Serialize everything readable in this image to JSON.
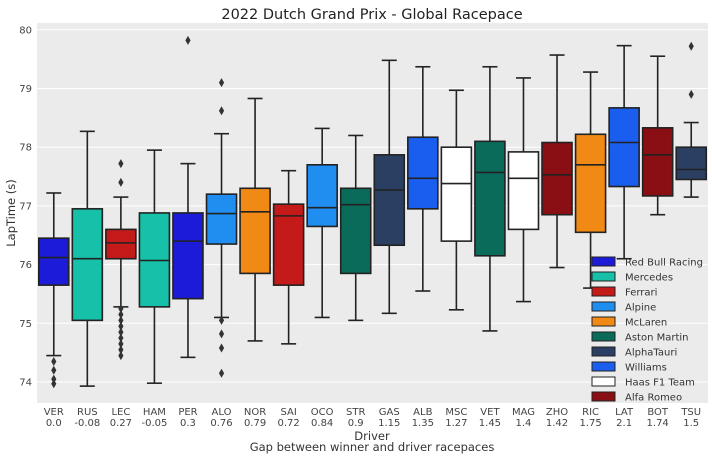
{
  "chart_data": {
    "type": "box",
    "title": "2022 Dutch Grand Prix - Global Racepace",
    "xlabel": "Driver",
    "xlabel2": "Gap between winner and driver racepaces",
    "ylabel": "LapTime (s)",
    "ylim": [
      73.6,
      80.1
    ],
    "yticks": [
      74,
      75,
      76,
      77,
      78,
      79,
      80
    ],
    "grid": true,
    "legend_position": "bottom-right",
    "teams": [
      {
        "name": "Red Bull Racing",
        "color": "#1b1bd8"
      },
      {
        "name": "Mercedes",
        "color": "#17c0a8"
      },
      {
        "name": "Ferrari",
        "color": "#c41a1a"
      },
      {
        "name": "Alpine",
        "color": "#1f8ef0"
      },
      {
        "name": "McLaren",
        "color": "#f08a14"
      },
      {
        "name": "Aston Martin",
        "color": "#0a6b5a"
      },
      {
        "name": "AlphaTauri",
        "color": "#2b3f63"
      },
      {
        "name": "Williams",
        "color": "#1a5ef0"
      },
      {
        "name": "Haas F1 Team",
        "color": "#ffffff"
      },
      {
        "name": "Alfa Romeo",
        "color": "#8a0f14"
      }
    ],
    "drivers": [
      {
        "driver": "VER",
        "gap": "0.0",
        "team": "Red Bull Racing",
        "whisker_low": 74.45,
        "q1": 75.65,
        "median": 76.12,
        "q3": 76.45,
        "whisker_high": 77.22,
        "outliers": [
          74.35,
          74.2,
          74.05,
          73.97
        ]
      },
      {
        "driver": "RUS",
        "gap": "-0.08",
        "team": "Mercedes",
        "whisker_low": 73.93,
        "q1": 75.05,
        "median": 76.1,
        "q3": 76.95,
        "whisker_high": 78.27,
        "outliers": []
      },
      {
        "driver": "LEC",
        "gap": "0.27",
        "team": "Ferrari",
        "whisker_low": 75.28,
        "q1": 76.1,
        "median": 76.37,
        "q3": 76.6,
        "whisker_high": 77.15,
        "outliers": [
          77.72,
          77.4,
          75.25,
          75.15,
          75.05,
          74.95,
          74.85,
          74.75,
          74.65,
          74.55,
          74.45
        ]
      },
      {
        "driver": "HAM",
        "gap": "-0.05",
        "team": "Mercedes",
        "whisker_low": 73.98,
        "q1": 75.28,
        "median": 76.07,
        "q3": 76.88,
        "whisker_high": 77.95,
        "outliers": []
      },
      {
        "driver": "PER",
        "gap": "0.3",
        "team": "Red Bull Racing",
        "whisker_low": 74.42,
        "q1": 75.42,
        "median": 76.4,
        "q3": 76.88,
        "whisker_high": 77.72,
        "outliers": [
          79.82
        ]
      },
      {
        "driver": "ALO",
        "gap": "0.76",
        "team": "Alpine",
        "whisker_low": 75.1,
        "q1": 76.35,
        "median": 76.87,
        "q3": 77.2,
        "whisker_high": 78.23,
        "outliers": [
          79.1,
          78.62,
          75.05,
          74.82,
          74.58,
          74.15
        ]
      },
      {
        "driver": "NOR",
        "gap": "0.79",
        "team": "McLaren",
        "whisker_low": 74.7,
        "q1": 75.85,
        "median": 76.9,
        "q3": 77.3,
        "whisker_high": 78.83,
        "outliers": []
      },
      {
        "driver": "SAI",
        "gap": "0.72",
        "team": "Ferrari",
        "whisker_low": 74.65,
        "q1": 75.65,
        "median": 76.83,
        "q3": 77.03,
        "whisker_high": 77.6,
        "outliers": []
      },
      {
        "driver": "OCO",
        "gap": "0.84",
        "team": "Alpine",
        "whisker_low": 75.1,
        "q1": 76.65,
        "median": 76.97,
        "q3": 77.7,
        "whisker_high": 78.32,
        "outliers": []
      },
      {
        "driver": "STR",
        "gap": "0.9",
        "team": "Aston Martin",
        "whisker_low": 75.05,
        "q1": 75.85,
        "median": 77.02,
        "q3": 77.3,
        "whisker_high": 78.2,
        "outliers": []
      },
      {
        "driver": "GAS",
        "gap": "1.15",
        "team": "AlphaTauri",
        "whisker_low": 75.17,
        "q1": 76.33,
        "median": 77.27,
        "q3": 77.87,
        "whisker_high": 79.48,
        "outliers": []
      },
      {
        "driver": "ALB",
        "gap": "1.35",
        "team": "Williams",
        "whisker_low": 75.55,
        "q1": 76.95,
        "median": 77.47,
        "q3": 78.17,
        "whisker_high": 79.37,
        "outliers": []
      },
      {
        "driver": "MSC",
        "gap": "1.27",
        "team": "Haas F1 Team",
        "whisker_low": 75.23,
        "q1": 76.4,
        "median": 77.38,
        "q3": 78.0,
        "whisker_high": 78.97,
        "outliers": []
      },
      {
        "driver": "VET",
        "gap": "1.45",
        "team": "Aston Martin",
        "whisker_low": 74.87,
        "q1": 76.15,
        "median": 77.57,
        "q3": 78.1,
        "whisker_high": 79.37,
        "outliers": []
      },
      {
        "driver": "MAG",
        "gap": "1.4",
        "team": "Haas F1 Team",
        "whisker_low": 75.37,
        "q1": 76.6,
        "median": 77.47,
        "q3": 77.92,
        "whisker_high": 79.18,
        "outliers": []
      },
      {
        "driver": "ZHO",
        "gap": "1.42",
        "team": "Alfa Romeo",
        "whisker_low": 75.95,
        "q1": 76.85,
        "median": 77.53,
        "q3": 78.08,
        "whisker_high": 79.57,
        "outliers": []
      },
      {
        "driver": "RIC",
        "gap": "1.75",
        "team": "McLaren",
        "whisker_low": 75.6,
        "q1": 76.55,
        "median": 77.7,
        "q3": 78.22,
        "whisker_high": 79.28,
        "outliers": []
      },
      {
        "driver": "LAT",
        "gap": "2.1",
        "team": "Williams",
        "whisker_low": 76.1,
        "q1": 77.33,
        "median": 78.08,
        "q3": 78.67,
        "whisker_high": 79.73,
        "outliers": []
      },
      {
        "driver": "BOT",
        "gap": "1.74",
        "team": "Alfa Romeo",
        "whisker_low": 76.85,
        "q1": 77.17,
        "median": 77.87,
        "q3": 78.33,
        "whisker_high": 79.55,
        "outliers": []
      },
      {
        "driver": "TSU",
        "gap": "1.5",
        "team": "AlphaTauri",
        "whisker_low": 77.15,
        "q1": 77.45,
        "median": 77.62,
        "q3": 78.0,
        "whisker_high": 78.42,
        "outliers": [
          79.72,
          78.9
        ]
      }
    ]
  }
}
